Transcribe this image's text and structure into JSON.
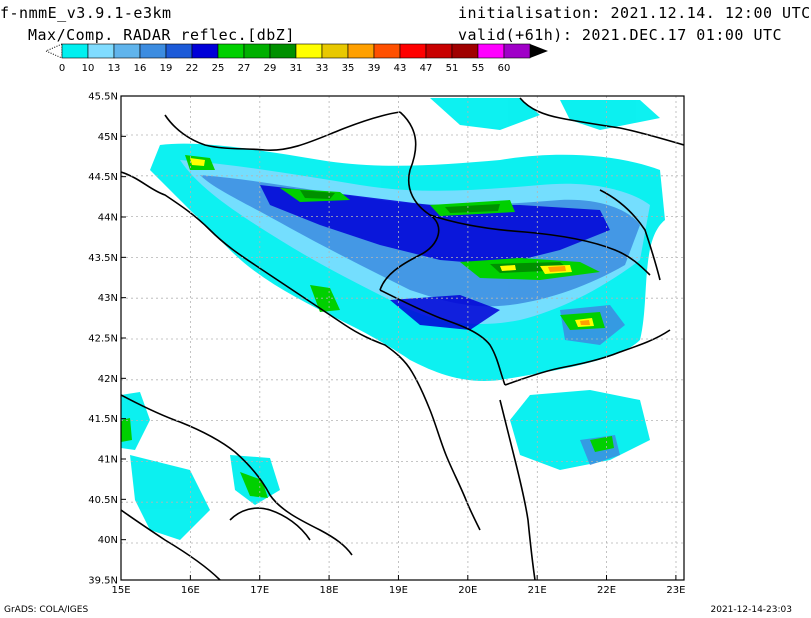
{
  "header": {
    "model_title": "f-nmmE_v3.9.1-e3km",
    "variable_title": "Max/Comp. RADAR reflec.[dbZ]",
    "init_label": "initialisation:",
    "init_value": "2021.12.14. 12:00 UTC",
    "valid_label": "valid(+61h):",
    "valid_value": "2021.DEC.17 01:00 UTC"
  },
  "colorbar": {
    "labels": [
      "0",
      "10",
      "13",
      "16",
      "19",
      "22",
      "25",
      "27",
      "29",
      "31",
      "33",
      "35",
      "39",
      "43",
      "47",
      "51",
      "55",
      "60"
    ],
    "colors": [
      "#00f0f0",
      "#80dcff",
      "#60b4ec",
      "#3c8ce0",
      "#1c5ad8",
      "#0000d8",
      "#00d000",
      "#00b000",
      "#009000",
      "#ffff00",
      "#e8c800",
      "#ffa000",
      "#ff5000",
      "#ff0000",
      "#c80000",
      "#a00000",
      "#ff00ff",
      "#a000c8",
      "#000000"
    ]
  },
  "map": {
    "lat_labels": [
      "45.5N",
      "45N",
      "44.5N",
      "44N",
      "43.5N",
      "43N",
      "42.5N",
      "42N",
      "41.5N",
      "41N",
      "40.5N",
      "40N",
      "39.5N"
    ],
    "lon_labels": [
      "15E",
      "16E",
      "17E",
      "18E",
      "19E",
      "20E",
      "21E",
      "22E",
      "23E"
    ]
  },
  "footer": {
    "left": "GrADS: COLA/IGES",
    "right": "2021-12-14-23:03"
  }
}
